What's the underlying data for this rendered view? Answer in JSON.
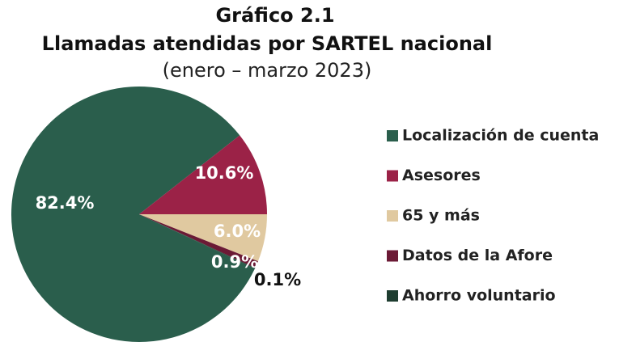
{
  "chart_data": {
    "type": "pie",
    "title": "Gráfico 2.1",
    "subtitle": "Llamadas atendidas por SARTEL nacional",
    "period": "(enero – marzo 2023)",
    "categories": [
      "Localización de cuenta",
      "Asesores",
      "65 y más",
      "Datos de la Afore",
      "Ahorro voluntario"
    ],
    "values": [
      82.4,
      10.6,
      6.0,
      0.9,
      0.1
    ],
    "value_labels": [
      "82.4%",
      "10.6%",
      "6.0%",
      "0.9%",
      "0.1%"
    ],
    "colors": [
      "#2a5e4c",
      "#9b2247",
      "#e0c9a0",
      "#6b1a35",
      "#1e3d30"
    ],
    "legend": "right"
  }
}
